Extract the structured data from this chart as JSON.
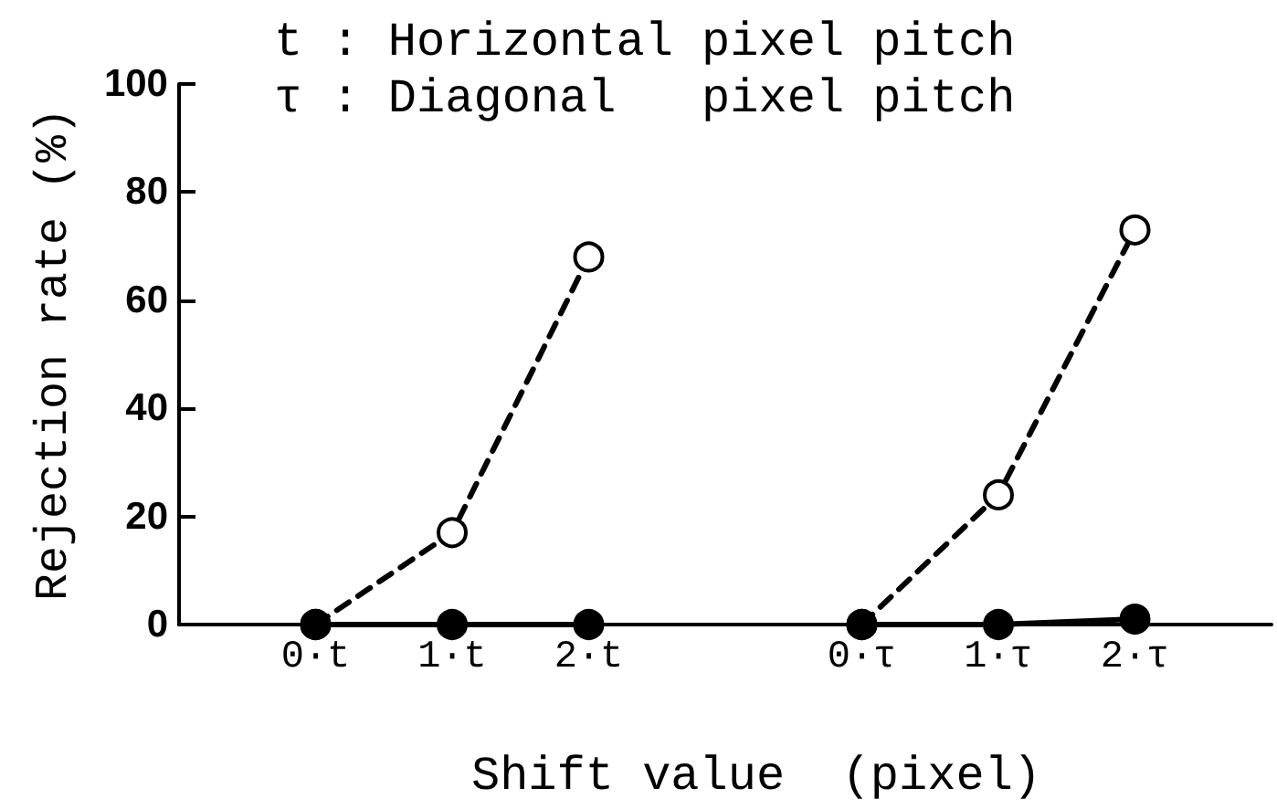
{
  "chart_data": {
    "type": "line",
    "annotations": [
      "t : Horizontal pixel pitch",
      "τ : Diagonal   pixel pitch"
    ],
    "xlabel": "Shift value  (pixel)",
    "ylabel": "Rejection rate (%)",
    "categories": [
      null,
      "0·t",
      "1·t",
      "2·t",
      null,
      "0·τ",
      "1·τ",
      "2·τ",
      null
    ],
    "series": [
      {
        "color": "#000000",
        "colors": [
          null,
          "#ffffff",
          "#ffffff",
          "#ffffff",
          null,
          "#ffffff",
          "#ffffff",
          "#ffffff",
          null
        ],
        "values": [
          null,
          0,
          17,
          68,
          null,
          0,
          24,
          73,
          null
        ],
        "line_style": "dashed",
        "marker": "circle"
      },
      {
        "color": "#000000",
        "values": [
          null,
          0,
          0,
          0,
          null,
          0,
          0,
          1,
          null
        ],
        "line_style": "solid",
        "marker": "circle"
      }
    ],
    "ylim": [
      0,
      100
    ],
    "yticks": [
      0,
      20,
      40,
      60,
      80,
      100
    ],
    "grid": false
  }
}
